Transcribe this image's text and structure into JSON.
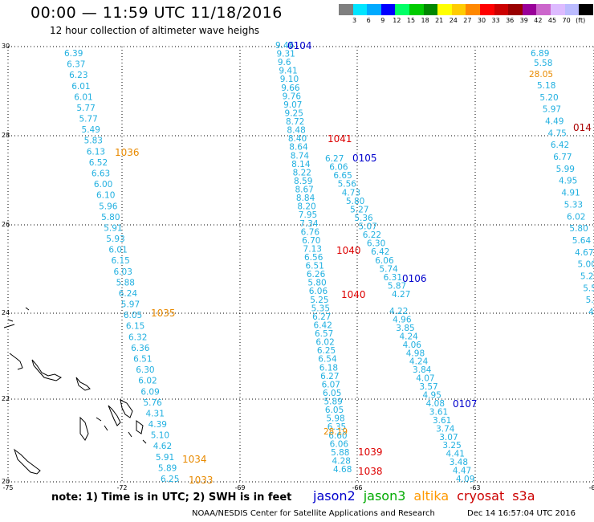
{
  "header": {
    "title": "00:00 — 11:59 UTC 11/18/2016",
    "subtitle": "12 hour collection of altimeter wave heighs"
  },
  "colorbar": {
    "colors": [
      "#7f7f7f",
      "#00e5ff",
      "#00aaff",
      "#0000ff",
      "#00ff66",
      "#00cc00",
      "#008800",
      "#ffff00",
      "#ffcc00",
      "#ff8800",
      "#ff0000",
      "#cc0000",
      "#990000",
      "#990099",
      "#cc66cc",
      "#ddbbff",
      "#bbbbff",
      "#000000"
    ],
    "labels": [
      "3",
      "6",
      "9",
      "12",
      "15",
      "18",
      "21",
      "24",
      "27",
      "30",
      "33",
      "36",
      "39",
      "42",
      "45",
      "70",
      "(ft)"
    ]
  },
  "axes": {
    "lat_labels": [
      "30",
      "28",
      "26",
      "24",
      "22",
      "20"
    ],
    "lon_labels": [
      "-75",
      "-72",
      "-69",
      "-66",
      "-63",
      "-60"
    ]
  },
  "tracks": {
    "t1": [
      "6.39",
      "6.37",
      "6.23",
      "6.01",
      "6.01",
      "5.77",
      "5.77",
      "5.49",
      "5.83",
      "6.13",
      "6.52",
      "6.63",
      "6.00",
      "6.10",
      "5.96",
      "5.80",
      "5.91",
      "5.93",
      "6.01",
      "6.15",
      "6.03",
      "5.88",
      "6.24",
      "5.97",
      "6.05",
      "6.15",
      "6.32",
      "6.36",
      "6.51",
      "6.30",
      "6.02",
      "6.09",
      "5.76",
      "4.31",
      "4.39",
      "5.10",
      "4.62",
      "5.91",
      "5.89",
      "6.25"
    ],
    "t2": [
      "9.46",
      "9.31",
      "9.6",
      "9.41",
      "9.10",
      "9.66",
      "9.76",
      "9.07",
      "9.25",
      "8.72",
      "8.48",
      "8.40",
      "8.64",
      "8.74",
      "8.14",
      "8.22",
      "8.59",
      "8.67",
      "8.84",
      "8.20",
      "7.95",
      "7.34",
      "6.76",
      "6.70",
      "7.13",
      "6.56",
      "6.51",
      "6.26",
      "5.80",
      "6.06",
      "5.25",
      "5.35",
      "6.27",
      "6.42",
      "6.57",
      "6.02",
      "6.25",
      "6.54",
      "6.18",
      "6.27",
      "6.07",
      "6.05",
      "5.89",
      "6.05",
      "5.98",
      "6.35",
      "6.60",
      "6.06",
      "5.88",
      "4.28",
      "4.68"
    ],
    "t2_orange": [
      "28.19"
    ],
    "t3": [
      "6.27",
      "6.06",
      "6.65",
      "5.56",
      "4.73",
      "5.80",
      "5.27",
      "5.36",
      "5.07",
      "6.22",
      "6.30",
      "6.42",
      "6.06",
      "5.74",
      "6.31",
      "5.87",
      "4.27"
    ],
    "t4": [
      "4.22",
      "4.96",
      "3.85",
      "4.24",
      "4.06",
      "4.98",
      "4.24",
      "3.84",
      "4.07",
      "3.57",
      "4.95",
      "4.08",
      "3.61",
      "3.61",
      "3.74",
      "3.07",
      "3.25",
      "4.41",
      "3.48",
      "4.47",
      "4.09"
    ],
    "t5": [
      "6.89",
      "5.58",
      "5.18",
      "5.20",
      "5.97",
      "4.49",
      "4.75",
      "6.42",
      "6.77",
      "5.99",
      "4.95",
      "4.91",
      "5.33",
      "6.02",
      "5.80",
      "5.64",
      "4.67",
      "5.00",
      "5.2",
      "5.5",
      "5.",
      "4."
    ],
    "t5_orange": [
      "28.05"
    ]
  },
  "cycle_labels": {
    "c0104": "0104",
    "c1041": "1041",
    "c0105": "0105",
    "c1040a": "1040",
    "c0106": "0106",
    "c1040b": "1040",
    "c0107": "0107",
    "c1039": "1039",
    "c1038": "1038",
    "c1036": "1036",
    "c1035": "1035",
    "c1034": "1034",
    "c1033": "1033",
    "c014": "014"
  },
  "footer": {
    "note": "note: 1) Time is in UTC; 2) SWH is in feet",
    "credit": "NOAA/NESDIS Center for Satellite Applications and Research",
    "timestamp": "Dec 14 16:57:04 UTC 2016"
  },
  "legend": [
    {
      "label": "jason2",
      "color": "#0000cc"
    },
    {
      "label": "jason3",
      "color": "#00aa00"
    },
    {
      "label": "altika",
      "color": "#ff9900"
    },
    {
      "label": "cryosat",
      "color": "#cc0000"
    },
    {
      "label": "s3a",
      "color": "#cc0000"
    }
  ],
  "colors": {
    "cyan": "#22b0e0",
    "orange": "#e88a00",
    "red": "#dd0000",
    "darkred": "#aa0000",
    "blue": "#0000cc"
  }
}
